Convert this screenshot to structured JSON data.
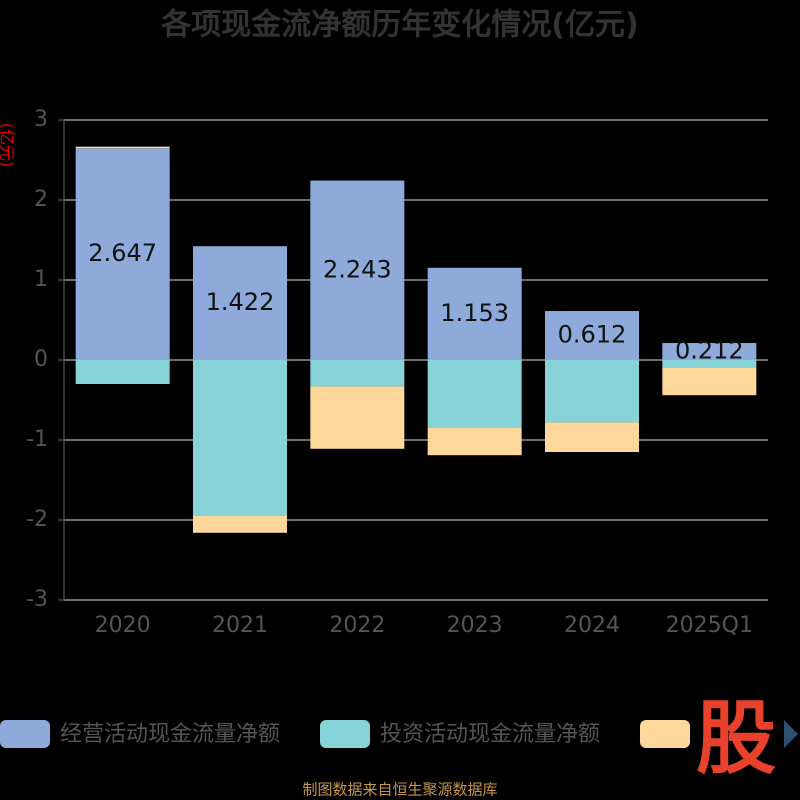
{
  "chart_data": {
    "type": "stacked-bar",
    "title": "各项现金流净额历年变化情况(亿元)",
    "y_label": "(亿元)",
    "categories": [
      "2020",
      "2021",
      "2022",
      "2023",
      "2024",
      "2025Q1"
    ],
    "series": [
      {
        "name": "经营活动现金流量净额",
        "color": "#8eaadb",
        "values": [
          2.647,
          1.422,
          2.243,
          1.153,
          0.612,
          0.212
        ],
        "show_labels": true
      },
      {
        "name": "投资活动现金流量净额",
        "color": "#86d4d8",
        "values": [
          -0.3,
          -1.95,
          -0.33,
          -0.85,
          -0.78,
          -0.09
        ]
      },
      {
        "color": "#fdd89a",
        "values": [
          0.02,
          -0.21,
          -0.78,
          -0.34,
          -0.37,
          -0.35
        ]
      }
    ],
    "ylim": [
      -3,
      3
    ],
    "yticks": [
      -3,
      -2,
      -1,
      0,
      1,
      2,
      3
    ],
    "grid": true,
    "watermark": "股",
    "source": "制图数据来自恒生聚源数据库"
  }
}
